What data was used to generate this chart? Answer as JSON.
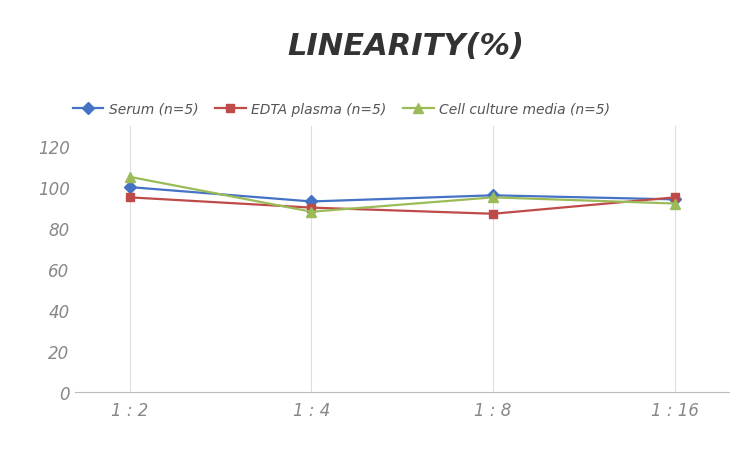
{
  "title": "LINEARITY(%)",
  "x_labels": [
    "1 : 2",
    "1 : 4",
    "1 : 8",
    "1 : 16"
  ],
  "series": [
    {
      "label": "Serum (n=5)",
      "values": [
        100,
        93,
        96,
        94
      ],
      "color": "#4472C4",
      "marker": "D",
      "marker_size": 6,
      "linewidth": 1.6
    },
    {
      "label": "EDTA plasma (n=5)",
      "values": [
        95,
        90,
        87,
        95
      ],
      "color": "#BE4B48",
      "marker": "s",
      "marker_size": 6,
      "linewidth": 1.6
    },
    {
      "label": "Cell culture media (n=5)",
      "values": [
        105,
        88,
        95,
        92
      ],
      "color": "#9BBB59",
      "marker": "^",
      "marker_size": 7,
      "linewidth": 1.6
    }
  ],
  "ylim": [
    0,
    130
  ],
  "yticks": [
    0,
    20,
    40,
    60,
    80,
    100,
    120
  ],
  "background_color": "#ffffff",
  "grid_color": "#dddddd",
  "title_fontsize": 22,
  "legend_fontsize": 10,
  "tick_fontsize": 12,
  "tick_color": "#888888"
}
